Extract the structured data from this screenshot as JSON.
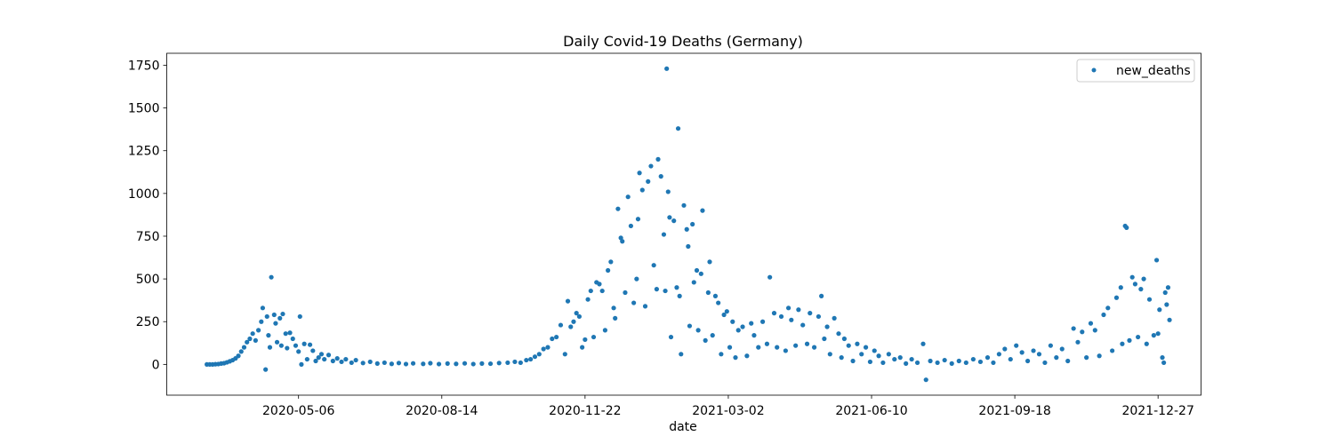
{
  "chart_data": {
    "type": "scatter",
    "title": "Daily Covid-19 Deaths (Germany)",
    "xlabel": "date",
    "ylabel": "",
    "x_type": "date",
    "xlim": [
      "2020-02-04",
      "2022-01-26"
    ],
    "ylim": [
      -180,
      1820
    ],
    "x_ticks": [
      "2020-05-06",
      "2020-08-14",
      "2020-11-22",
      "2021-03-02",
      "2021-06-10",
      "2021-09-18",
      "2021-12-27"
    ],
    "y_ticks": [
      0,
      250,
      500,
      750,
      1000,
      1250,
      1500,
      1750
    ],
    "grid": false,
    "legend_position": "top-right",
    "marker_color": "#1f77b4",
    "series": [
      {
        "name": "new_deaths",
        "points": [
          [
            "2020-03-03",
            0
          ],
          [
            "2020-03-05",
            0
          ],
          [
            "2020-03-07",
            0
          ],
          [
            "2020-03-09",
            1
          ],
          [
            "2020-03-11",
            2
          ],
          [
            "2020-03-13",
            5
          ],
          [
            "2020-03-15",
            7
          ],
          [
            "2020-03-17",
            12
          ],
          [
            "2020-03-19",
            18
          ],
          [
            "2020-03-21",
            25
          ],
          [
            "2020-03-23",
            35
          ],
          [
            "2020-03-25",
            50
          ],
          [
            "2020-03-27",
            75
          ],
          [
            "2020-03-29",
            100
          ],
          [
            "2020-03-31",
            130
          ],
          [
            "2020-04-02",
            150
          ],
          [
            "2020-04-04",
            180
          ],
          [
            "2020-04-06",
            140
          ],
          [
            "2020-04-08",
            200
          ],
          [
            "2020-04-10",
            250
          ],
          [
            "2020-04-11",
            330
          ],
          [
            "2020-04-13",
            -30
          ],
          [
            "2020-04-14",
            280
          ],
          [
            "2020-04-15",
            170
          ],
          [
            "2020-04-16",
            100
          ],
          [
            "2020-04-17",
            510
          ],
          [
            "2020-04-19",
            290
          ],
          [
            "2020-04-20",
            240
          ],
          [
            "2020-04-21",
            130
          ],
          [
            "2020-04-23",
            270
          ],
          [
            "2020-04-24",
            110
          ],
          [
            "2020-04-25",
            295
          ],
          [
            "2020-04-27",
            180
          ],
          [
            "2020-04-28",
            95
          ],
          [
            "2020-04-30",
            185
          ],
          [
            "2020-05-02",
            150
          ],
          [
            "2020-05-04",
            110
          ],
          [
            "2020-05-06",
            75
          ],
          [
            "2020-05-07",
            280
          ],
          [
            "2020-05-08",
            0
          ],
          [
            "2020-05-10",
            120
          ],
          [
            "2020-05-12",
            30
          ],
          [
            "2020-05-14",
            115
          ],
          [
            "2020-05-16",
            80
          ],
          [
            "2020-05-18",
            20
          ],
          [
            "2020-05-20",
            40
          ],
          [
            "2020-05-22",
            60
          ],
          [
            "2020-05-24",
            30
          ],
          [
            "2020-05-27",
            55
          ],
          [
            "2020-05-30",
            20
          ],
          [
            "2020-06-02",
            35
          ],
          [
            "2020-06-05",
            15
          ],
          [
            "2020-06-08",
            30
          ],
          [
            "2020-06-12",
            10
          ],
          [
            "2020-06-15",
            25
          ],
          [
            "2020-06-20",
            8
          ],
          [
            "2020-06-25",
            15
          ],
          [
            "2020-06-30",
            5
          ],
          [
            "2020-07-05",
            10
          ],
          [
            "2020-07-10",
            3
          ],
          [
            "2020-07-15",
            8
          ],
          [
            "2020-07-20",
            2
          ],
          [
            "2020-07-25",
            6
          ],
          [
            "2020-08-01",
            3
          ],
          [
            "2020-08-06",
            7
          ],
          [
            "2020-08-12",
            2
          ],
          [
            "2020-08-18",
            5
          ],
          [
            "2020-08-24",
            3
          ],
          [
            "2020-08-30",
            6
          ],
          [
            "2020-09-05",
            2
          ],
          [
            "2020-09-11",
            5
          ],
          [
            "2020-09-17",
            4
          ],
          [
            "2020-09-23",
            8
          ],
          [
            "2020-09-29",
            10
          ],
          [
            "2020-10-04",
            15
          ],
          [
            "2020-10-08",
            10
          ],
          [
            "2020-10-12",
            25
          ],
          [
            "2020-10-15",
            30
          ],
          [
            "2020-10-18",
            45
          ],
          [
            "2020-10-21",
            60
          ],
          [
            "2020-10-24",
            90
          ],
          [
            "2020-10-27",
            100
          ],
          [
            "2020-10-30",
            150
          ],
          [
            "2020-11-02",
            160
          ],
          [
            "2020-11-05",
            230
          ],
          [
            "2020-11-08",
            60
          ],
          [
            "2020-11-10",
            370
          ],
          [
            "2020-11-12",
            220
          ],
          [
            "2020-11-14",
            250
          ],
          [
            "2020-11-16",
            300
          ],
          [
            "2020-11-18",
            280
          ],
          [
            "2020-11-20",
            100
          ],
          [
            "2020-11-22",
            145
          ],
          [
            "2020-11-24",
            380
          ],
          [
            "2020-11-26",
            430
          ],
          [
            "2020-11-28",
            160
          ],
          [
            "2020-11-30",
            480
          ],
          [
            "2020-12-02",
            470
          ],
          [
            "2020-12-04",
            430
          ],
          [
            "2020-12-06",
            200
          ],
          [
            "2020-12-08",
            550
          ],
          [
            "2020-12-10",
            600
          ],
          [
            "2020-12-12",
            330
          ],
          [
            "2020-12-13",
            270
          ],
          [
            "2020-12-15",
            910
          ],
          [
            "2020-12-17",
            740
          ],
          [
            "2020-12-18",
            720
          ],
          [
            "2020-12-20",
            420
          ],
          [
            "2020-12-22",
            980
          ],
          [
            "2020-12-24",
            810
          ],
          [
            "2020-12-26",
            360
          ],
          [
            "2020-12-28",
            500
          ],
          [
            "2020-12-29",
            850
          ],
          [
            "2020-12-30",
            1120
          ],
          [
            "2021-01-01",
            1020
          ],
          [
            "2021-01-03",
            340
          ],
          [
            "2021-01-05",
            1070
          ],
          [
            "2021-01-07",
            1160
          ],
          [
            "2021-01-09",
            580
          ],
          [
            "2021-01-11",
            440
          ],
          [
            "2021-01-12",
            1200
          ],
          [
            "2021-01-14",
            1100
          ],
          [
            "2021-01-16",
            760
          ],
          [
            "2021-01-17",
            430
          ],
          [
            "2021-01-18",
            1730
          ],
          [
            "2021-01-19",
            1010
          ],
          [
            "2021-01-20",
            860
          ],
          [
            "2021-01-21",
            160
          ],
          [
            "2021-01-23",
            840
          ],
          [
            "2021-01-25",
            450
          ],
          [
            "2021-01-26",
            1380
          ],
          [
            "2021-01-27",
            400
          ],
          [
            "2021-01-28",
            60
          ],
          [
            "2021-01-30",
            930
          ],
          [
            "2021-02-01",
            790
          ],
          [
            "2021-02-02",
            690
          ],
          [
            "2021-02-03",
            225
          ],
          [
            "2021-02-05",
            820
          ],
          [
            "2021-02-06",
            480
          ],
          [
            "2021-02-08",
            550
          ],
          [
            "2021-02-09",
            200
          ],
          [
            "2021-02-11",
            530
          ],
          [
            "2021-02-12",
            900
          ],
          [
            "2021-02-14",
            140
          ],
          [
            "2021-02-16",
            420
          ],
          [
            "2021-02-17",
            600
          ],
          [
            "2021-02-19",
            170
          ],
          [
            "2021-02-21",
            400
          ],
          [
            "2021-02-23",
            360
          ],
          [
            "2021-02-25",
            60
          ],
          [
            "2021-02-27",
            290
          ],
          [
            "2021-03-01",
            310
          ],
          [
            "2021-03-03",
            100
          ],
          [
            "2021-03-05",
            250
          ],
          [
            "2021-03-07",
            40
          ],
          [
            "2021-03-09",
            200
          ],
          [
            "2021-03-12",
            220
          ],
          [
            "2021-03-15",
            50
          ],
          [
            "2021-03-18",
            240
          ],
          [
            "2021-03-20",
            170
          ],
          [
            "2021-03-23",
            100
          ],
          [
            "2021-03-26",
            250
          ],
          [
            "2021-03-29",
            120
          ],
          [
            "2021-03-31",
            510
          ],
          [
            "2021-04-03",
            300
          ],
          [
            "2021-04-05",
            100
          ],
          [
            "2021-04-08",
            280
          ],
          [
            "2021-04-11",
            80
          ],
          [
            "2021-04-13",
            330
          ],
          [
            "2021-04-15",
            260
          ],
          [
            "2021-04-18",
            110
          ],
          [
            "2021-04-20",
            320
          ],
          [
            "2021-04-23",
            230
          ],
          [
            "2021-04-26",
            120
          ],
          [
            "2021-04-28",
            300
          ],
          [
            "2021-05-01",
            100
          ],
          [
            "2021-05-04",
            280
          ],
          [
            "2021-05-06",
            400
          ],
          [
            "2021-05-08",
            150
          ],
          [
            "2021-05-10",
            220
          ],
          [
            "2021-05-12",
            60
          ],
          [
            "2021-05-15",
            270
          ],
          [
            "2021-05-18",
            180
          ],
          [
            "2021-05-20",
            40
          ],
          [
            "2021-05-22",
            150
          ],
          [
            "2021-05-25",
            110
          ],
          [
            "2021-05-28",
            20
          ],
          [
            "2021-05-31",
            120
          ],
          [
            "2021-06-03",
            60
          ],
          [
            "2021-06-06",
            100
          ],
          [
            "2021-06-09",
            15
          ],
          [
            "2021-06-12",
            80
          ],
          [
            "2021-06-15",
            50
          ],
          [
            "2021-06-18",
            10
          ],
          [
            "2021-06-22",
            60
          ],
          [
            "2021-06-26",
            30
          ],
          [
            "2021-06-30",
            40
          ],
          [
            "2021-07-04",
            5
          ],
          [
            "2021-07-08",
            30
          ],
          [
            "2021-07-12",
            10
          ],
          [
            "2021-07-16",
            120
          ],
          [
            "2021-07-18",
            -90
          ],
          [
            "2021-07-21",
            20
          ],
          [
            "2021-07-26",
            10
          ],
          [
            "2021-07-31",
            25
          ],
          [
            "2021-08-05",
            5
          ],
          [
            "2021-08-10",
            20
          ],
          [
            "2021-08-15",
            10
          ],
          [
            "2021-08-20",
            30
          ],
          [
            "2021-08-25",
            15
          ],
          [
            "2021-08-30",
            40
          ],
          [
            "2021-09-03",
            10
          ],
          [
            "2021-09-07",
            60
          ],
          [
            "2021-09-11",
            90
          ],
          [
            "2021-09-15",
            30
          ],
          [
            "2021-09-19",
            110
          ],
          [
            "2021-09-23",
            70
          ],
          [
            "2021-09-27",
            20
          ],
          [
            "2021-10-01",
            80
          ],
          [
            "2021-10-05",
            60
          ],
          [
            "2021-10-09",
            10
          ],
          [
            "2021-10-13",
            110
          ],
          [
            "2021-10-17",
            40
          ],
          [
            "2021-10-21",
            90
          ],
          [
            "2021-10-25",
            20
          ],
          [
            "2021-10-29",
            210
          ],
          [
            "2021-11-01",
            130
          ],
          [
            "2021-11-04",
            190
          ],
          [
            "2021-11-07",
            40
          ],
          [
            "2021-11-10",
            240
          ],
          [
            "2021-11-13",
            200
          ],
          [
            "2021-11-16",
            50
          ],
          [
            "2021-11-19",
            290
          ],
          [
            "2021-11-22",
            330
          ],
          [
            "2021-11-25",
            80
          ],
          [
            "2021-11-28",
            390
          ],
          [
            "2021-12-01",
            450
          ],
          [
            "2021-12-02",
            120
          ],
          [
            "2021-12-04",
            810
          ],
          [
            "2021-12-05",
            800
          ],
          [
            "2021-12-07",
            140
          ],
          [
            "2021-12-09",
            510
          ],
          [
            "2021-12-11",
            470
          ],
          [
            "2021-12-13",
            160
          ],
          [
            "2021-12-15",
            440
          ],
          [
            "2021-12-17",
            500
          ],
          [
            "2021-12-19",
            120
          ],
          [
            "2021-12-21",
            380
          ],
          [
            "2021-12-24",
            170
          ],
          [
            "2021-12-26",
            610
          ],
          [
            "2021-12-27",
            180
          ],
          [
            "2021-12-28",
            320
          ],
          [
            "2021-12-30",
            40
          ],
          [
            "2021-12-31",
            10
          ],
          [
            "2022-01-01",
            420
          ],
          [
            "2022-01-02",
            350
          ],
          [
            "2022-01-03",
            450
          ],
          [
            "2022-01-04",
            260
          ]
        ]
      }
    ]
  }
}
